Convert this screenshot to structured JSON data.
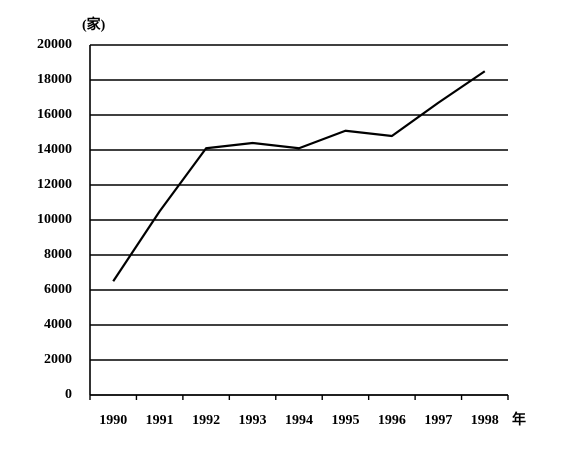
{
  "chart_data": {
    "type": "line",
    "y_unit": "(家)",
    "x_unit": "年",
    "categories": [
      "1990",
      "1991",
      "1992",
      "1993",
      "1994",
      "1995",
      "1996",
      "1997",
      "1998"
    ],
    "series": [
      {
        "color": "#000000",
        "values": [
          6500,
          10500,
          14100,
          14400,
          14100,
          15100,
          14800,
          16700,
          18500
        ]
      }
    ],
    "ylim": [
      0,
      20000
    ],
    "yticks": [
      0,
      2000,
      4000,
      6000,
      8000,
      10000,
      12000,
      14000,
      16000,
      18000,
      20000
    ],
    "grid": true
  }
}
